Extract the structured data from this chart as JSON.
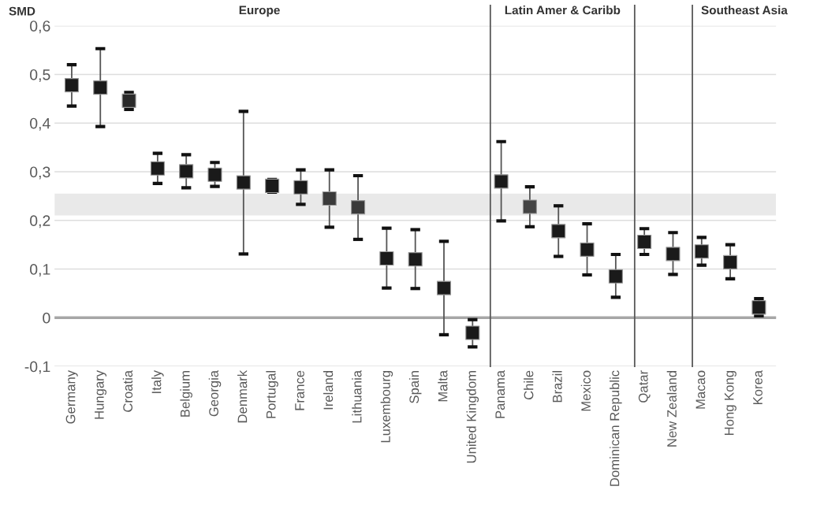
{
  "chart_data": {
    "type": "scatter",
    "ylabel": "SMD",
    "categories": [
      "Germany",
      "Hungary",
      "Croatia",
      "Italy",
      "Belgium",
      "Georgia",
      "Denmark",
      "Portugal",
      "France",
      "Ireland",
      "Lithuania",
      "Luxembourg",
      "Spain",
      "Malta",
      "United Kingdom",
      "Panama",
      "Chile",
      "Brazil",
      "Mexico",
      "Dominican Republic",
      "Qatar",
      "New Zealand",
      "Macao",
      "Hong Kong",
      "Korea"
    ],
    "values": [
      0.478,
      0.473,
      0.446,
      0.307,
      0.301,
      0.294,
      0.278,
      0.271,
      0.268,
      0.245,
      0.227,
      0.122,
      0.12,
      0.061,
      -0.031,
      0.28,
      0.228,
      0.178,
      0.14,
      0.085,
      0.156,
      0.131,
      0.136,
      0.114,
      0.021
    ],
    "errors": [
      [
        0.435,
        0.52
      ],
      [
        0.393,
        0.553
      ],
      [
        0.428,
        0.463
      ],
      [
        0.276,
        0.338
      ],
      [
        0.267,
        0.335
      ],
      [
        0.27,
        0.319
      ],
      [
        0.131,
        0.424
      ],
      [
        0.258,
        0.284
      ],
      [
        0.233,
        0.304
      ],
      [
        0.186,
        0.304
      ],
      [
        0.161,
        0.292
      ],
      [
        0.061,
        0.184
      ],
      [
        0.06,
        0.181
      ],
      [
        -0.035,
        0.157
      ],
      [
        -0.06,
        -0.004
      ],
      [
        0.199,
        0.362
      ],
      [
        0.187,
        0.269
      ],
      [
        0.126,
        0.23
      ],
      [
        0.088,
        0.193
      ],
      [
        0.042,
        0.13
      ],
      [
        0.13,
        0.183
      ],
      [
        0.089,
        0.175
      ],
      [
        0.108,
        0.165
      ],
      [
        0.08,
        0.15
      ],
      [
        0.004,
        0.039
      ]
    ],
    "colors": [
      "#1a1a1a",
      "#1a1a1a",
      "#2a2a2a",
      "#1a1a1a",
      "#1a1a1a",
      "#1a1a1a",
      "#1a1a1a",
      "#1a1a1a",
      "#1a1a1a",
      "#3a3a3a",
      "#3a3a3a",
      "#1a1a1a",
      "#1a1a1a",
      "#1a1a1a",
      "#1a1a1a",
      "#1a1a1a",
      "#444444",
      "#1a1a1a",
      "#1a1a1a",
      "#1a1a1a",
      "#1a1a1a",
      "#1a1a1a",
      "#1a1a1a",
      "#1a1a1a",
      "#1a1a1a"
    ],
    "marker": "square",
    "ylim": [
      -0.1,
      0.6
    ],
    "yticks": [
      {
        "value": -0.1,
        "label": "-0,1"
      },
      {
        "value": 0,
        "label": "0"
      },
      {
        "value": 0.1,
        "label": "0,1"
      },
      {
        "value": 0.2,
        "label": "0,2"
      },
      {
        "value": 0.3,
        "label": "0,3"
      },
      {
        "value": 0.4,
        "label": "0,4"
      },
      {
        "value": 0.5,
        "label": "0,5"
      },
      {
        "value": 0.6,
        "label": "0,6"
      }
    ],
    "grid": "y",
    "bands": [
      {
        "axis": "y",
        "from": 0.21,
        "to": 0.255,
        "color": "#e9e9e9"
      }
    ],
    "ref_lines": [
      {
        "axis": "y",
        "value": 0,
        "color": "#a6a6a6"
      }
    ],
    "annotations": [
      "Europe",
      "Latin Amer & Caribb",
      "Southeast Asia"
    ]
  }
}
